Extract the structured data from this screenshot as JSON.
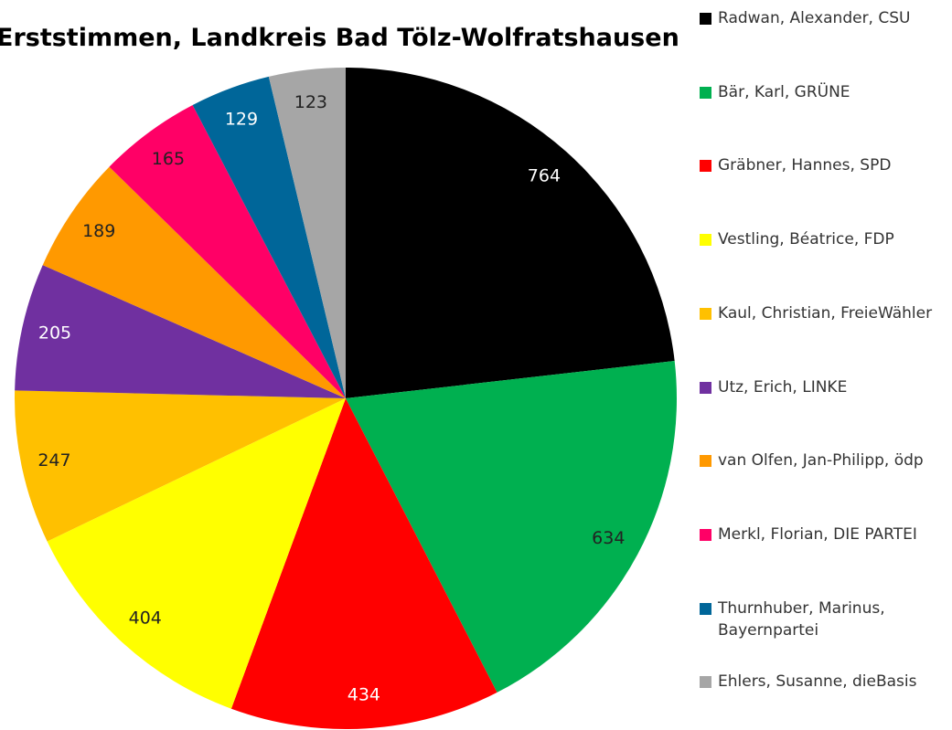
{
  "chart_data": {
    "type": "pie",
    "title": "Erststimmen, Landkreis Bad Tölz-Wolfratshausen",
    "categories": [
      "Radwan, Alexander, CSU",
      "Bär, Karl, GRÜNE",
      "Gräbner, Hannes, SPD",
      "Vestling, Béatrice, FDP",
      "Kaul, Christian, FreieWähler",
      "Utz, Erich, LINKE",
      "van Olfen, Jan-Philipp, ödp",
      "Merkl, Florian, DIE PARTEI",
      "Thurnhuber, Marinus, Bayernpartei",
      "Ehlers, Susanne, dieBasis"
    ],
    "values": [
      764,
      634,
      434,
      404,
      247,
      205,
      189,
      165,
      129,
      123
    ],
    "colors": [
      "#000000",
      "#00b050",
      "#ff0000",
      "#ffff00",
      "#ffc000",
      "#7030a0",
      "#ff9900",
      "#ff0066",
      "#006699",
      "#a6a6a6"
    ],
    "legend": "right"
  }
}
